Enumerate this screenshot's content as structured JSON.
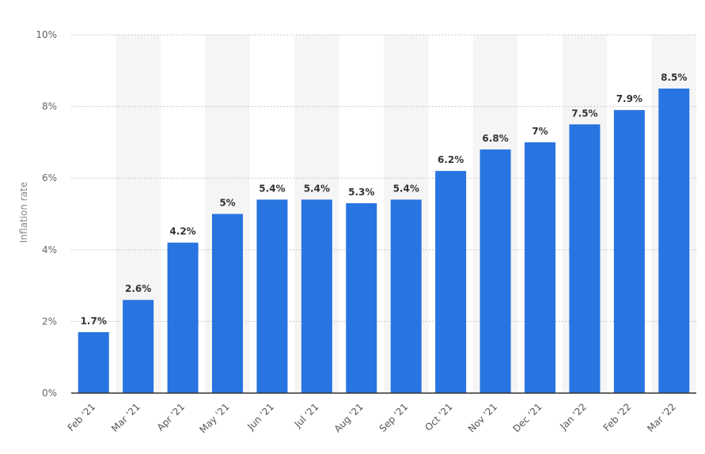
{
  "chart_data": {
    "type": "bar",
    "ylabel": "Inflation rate",
    "xlabel": "",
    "ylim": [
      0,
      10
    ],
    "y_ticks": [
      0,
      2,
      4,
      6,
      8,
      10
    ],
    "y_tick_labels": [
      "0%",
      "2%",
      "4%",
      "6%",
      "8%",
      "10%"
    ],
    "grid": "horizontal dotted",
    "alternating_column_shading": true,
    "categories": [
      "Feb '21",
      "Mar '21",
      "Apr '21",
      "May '21",
      "Jun '21",
      "Jul '21",
      "Aug '21",
      "Sep '21",
      "Oct '21",
      "Nov '21",
      "Dec '21",
      "Jan '22",
      "Feb '22",
      "Mar '22"
    ],
    "values": [
      1.7,
      2.6,
      4.2,
      5,
      5.4,
      5.4,
      5.3,
      5.4,
      6.2,
      6.8,
      7,
      7.5,
      7.9,
      8.5
    ],
    "data_labels": [
      "1.7%",
      "2.6%",
      "4.2%",
      "5%",
      "5.4%",
      "5.4%",
      "5.3%",
      "5.4%",
      "6.2%",
      "6.8%",
      "7%",
      "7.5%",
      "7.9%",
      "8.5%"
    ],
    "colors": {
      "bar": "#2874e0",
      "grid": "#c8c8c8",
      "axis": "#333333",
      "band": "#f5f5f5"
    }
  }
}
